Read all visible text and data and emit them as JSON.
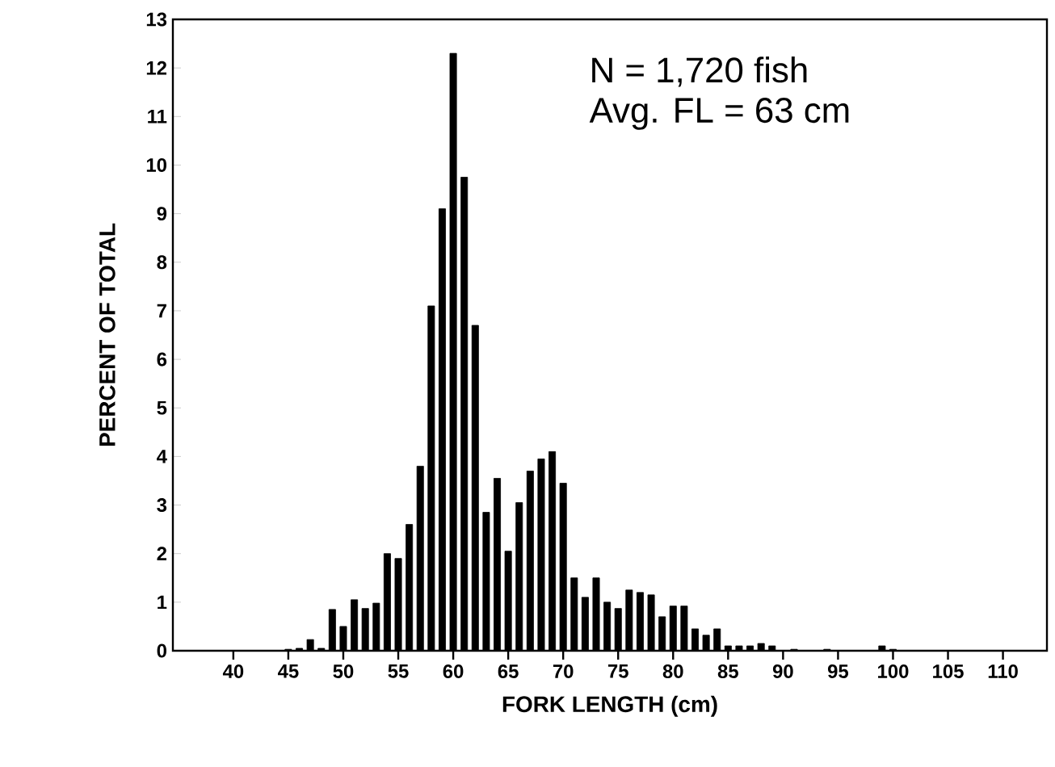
{
  "chart_data": {
    "type": "bar",
    "xlabel": "FORK LENGTH (cm)",
    "ylabel": "PERCENT OF TOTAL",
    "annotations": [
      "N = 1,720 fish",
      "Avg. FL = 63 cm"
    ],
    "x": [
      45,
      46,
      47,
      48,
      49,
      50,
      51,
      52,
      53,
      54,
      55,
      56,
      57,
      58,
      59,
      60,
      61,
      62,
      63,
      64,
      65,
      66,
      67,
      68,
      69,
      70,
      71,
      72,
      73,
      74,
      75,
      76,
      77,
      78,
      79,
      80,
      81,
      82,
      83,
      84,
      85,
      86,
      87,
      88,
      89,
      91,
      94,
      99,
      100
    ],
    "values": [
      0.03,
      0.05,
      0.23,
      0.05,
      0.85,
      0.5,
      1.05,
      0.87,
      0.98,
      2.0,
      1.9,
      2.6,
      3.8,
      7.1,
      9.1,
      12.3,
      9.75,
      6.7,
      2.85,
      3.55,
      2.05,
      3.05,
      3.7,
      3.95,
      4.1,
      3.45,
      1.5,
      1.1,
      1.5,
      1.0,
      0.87,
      1.25,
      1.2,
      1.15,
      0.7,
      0.92,
      0.92,
      0.45,
      0.32,
      0.45,
      0.1,
      0.1,
      0.1,
      0.15,
      0.1,
      0.03,
      0.03,
      0.1,
      0.03
    ],
    "color": "#000000",
    "xlim": [
      34.5,
      114
    ],
    "ylim": [
      0,
      13
    ],
    "xticks": [
      40,
      45,
      50,
      55,
      60,
      65,
      70,
      75,
      80,
      85,
      90,
      95,
      100,
      105,
      110
    ],
    "yticks": [
      0,
      1,
      2,
      3,
      4,
      5,
      6,
      7,
      8,
      9,
      10,
      11,
      12,
      13
    ],
    "grid": false
  }
}
